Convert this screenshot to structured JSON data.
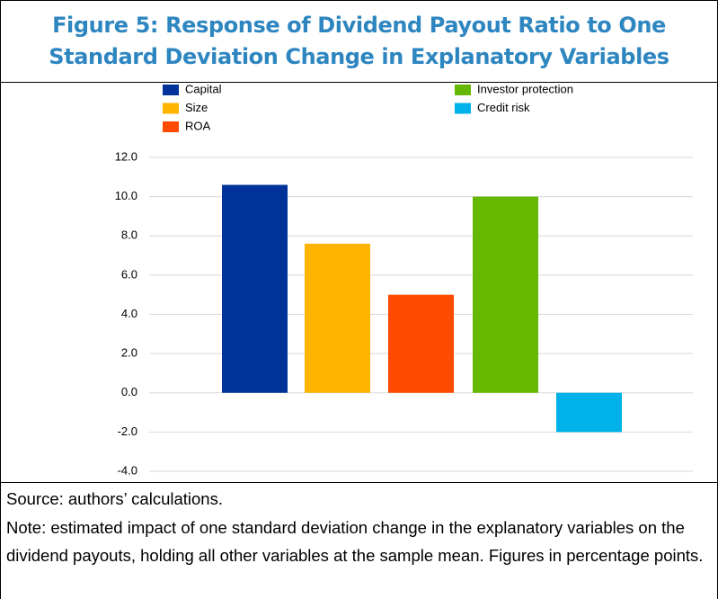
{
  "chart_data": {
    "type": "bar",
    "title": [
      "Figure 5: Response of Dividend Payout Ratio to One",
      "Standard Deviation Change in Explanatory Variables"
    ],
    "series": [
      {
        "name": "Capital",
        "color": "#003299",
        "values": [
          10.6
        ]
      },
      {
        "name": "Size",
        "color": "#ffb400",
        "values": [
          7.6
        ]
      },
      {
        "name": "ROA",
        "color": "#ff4b00",
        "values": [
          5.0
        ]
      },
      {
        "name": "Investor protection",
        "color": "#65b800",
        "values": [
          10.0
        ]
      },
      {
        "name": "Credit risk",
        "color": "#00b1ea",
        "values": [
          -2.0
        ]
      }
    ],
    "ylim": [
      -4,
      12
    ],
    "yticks": [
      {
        "value": -4,
        "label": "-4.0"
      },
      {
        "value": -2,
        "label": "-2.0"
      },
      {
        "value": 0,
        "label": "0.0"
      },
      {
        "value": 2,
        "label": "2.0"
      },
      {
        "value": 4,
        "label": "4.0"
      },
      {
        "value": 6,
        "label": "6.0"
      },
      {
        "value": 8,
        "label": "8.0"
      },
      {
        "value": 10,
        "label": "10.0"
      },
      {
        "value": 12,
        "label": "12.0"
      }
    ],
    "grid": true,
    "source": "Source: authors’ calculations.",
    "note": "Note: estimated impact of one standard deviation change in the explanatory variables on the dividend payouts, holding all other variables at the sample mean. Figures in percentage points."
  }
}
